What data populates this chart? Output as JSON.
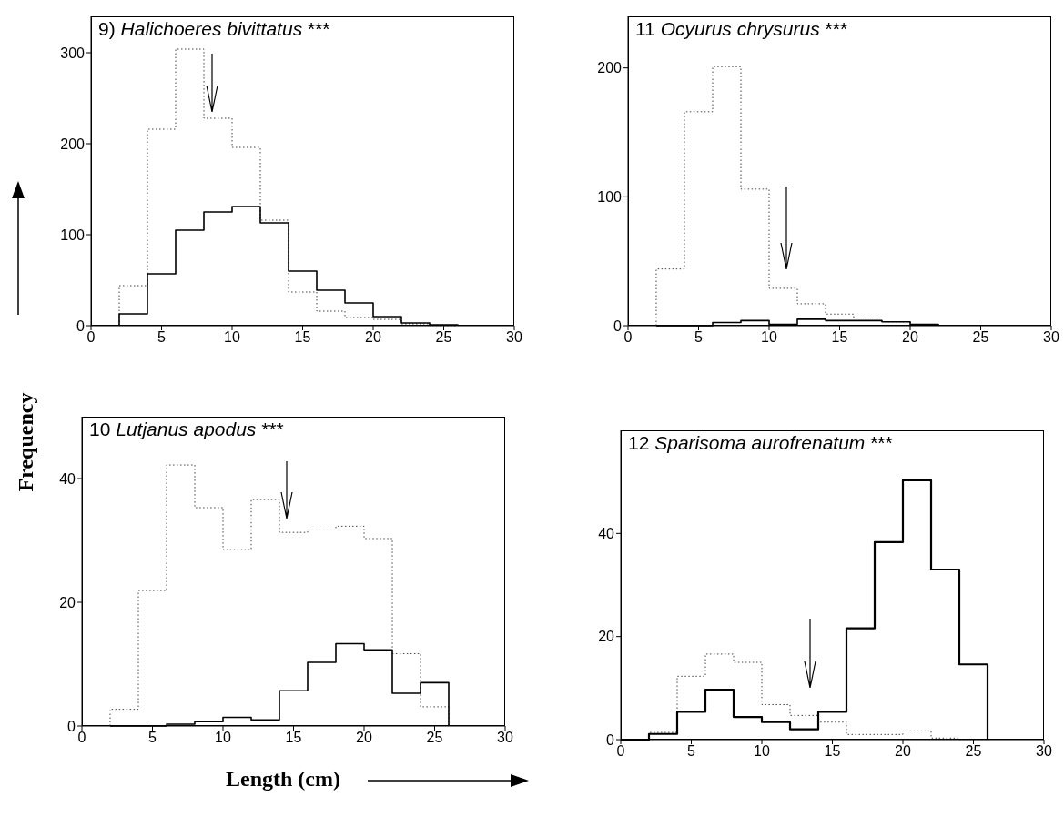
{
  "chart_data": [
    {
      "type": "histogram",
      "title": "9) Halichoeres bivittatus ***",
      "ylabel": "Frequency",
      "xlabel": "Length (cm)",
      "bins": [
        2,
        4,
        6,
        8,
        10,
        12,
        14,
        16,
        18,
        20,
        22,
        24,
        26
      ],
      "series": [
        {
          "color": "#444444",
          "line_style": "dotted",
          "values": [
            44,
            216,
            304,
            228,
            196,
            116,
            37,
            16,
            9,
            7,
            2,
            0
          ]
        },
        {
          "color": "#000000",
          "line_style": "solid",
          "values": [
            13,
            57,
            105,
            125,
            131,
            113,
            60,
            39,
            25,
            10,
            3,
            1
          ]
        }
      ],
      "xlim": [
        0,
        30
      ],
      "xticks": [
        0,
        5,
        10,
        15,
        20,
        25,
        30
      ],
      "ylim": [
        0,
        340
      ],
      "yticks": [
        0,
        100,
        200,
        300
      ]
    },
    {
      "type": "histogram",
      "title": "11 Ocyurus chrysurus ***",
      "bins": [
        2,
        4,
        6,
        8,
        10,
        12,
        14,
        16,
        18,
        20,
        22
      ],
      "series": [
        {
          "color": "#444444",
          "line_style": "dotted",
          "values": [
            44,
            166,
            201,
            106,
            29,
            17,
            9,
            6,
            3,
            1
          ]
        },
        {
          "color": "#000000",
          "line_style": "solid",
          "values": [
            0,
            0,
            2.5,
            4,
            1,
            5,
            4,
            4,
            3,
            1
          ]
        }
      ],
      "xlim": [
        0,
        30
      ],
      "xticks": [
        0,
        5,
        10,
        15,
        20,
        25,
        30
      ],
      "ylim": [
        0,
        240
      ],
      "yticks": [
        0,
        100,
        200
      ]
    },
    {
      "type": "histogram",
      "title": "10 Lutjanus apodus ***",
      "bins": [
        2,
        4,
        6,
        8,
        10,
        12,
        14,
        16,
        18,
        20,
        22,
        24,
        26
      ],
      "series": [
        {
          "color": "#444444",
          "line_style": "dotted",
          "values": [
            2.7,
            21.9,
            42.2,
            35.3,
            28.5,
            36.6,
            31.3,
            31.7,
            32.3,
            30.3,
            11.7,
            3.1
          ]
        },
        {
          "color": "#000000",
          "line_style": "solid",
          "values": [
            0,
            0,
            0.3,
            0.7,
            1.4,
            1.0,
            5.7,
            10.3,
            13.3,
            12.3,
            5.3,
            7.0
          ]
        }
      ],
      "xlim": [
        0,
        30
      ],
      "xticks": [
        0,
        5,
        10,
        15,
        20,
        25,
        30
      ],
      "ylim": [
        0,
        50
      ],
      "yticks": [
        0,
        20,
        40
      ]
    },
    {
      "type": "histogram",
      "title": "12 Sparisoma aurofrenatum ***",
      "bins": [
        0,
        2,
        4,
        6,
        8,
        10,
        12,
        14,
        16,
        18,
        20,
        22,
        24,
        26
      ],
      "series": [
        {
          "color": "#444444",
          "line_style": "dotted",
          "values": [
            0,
            1.4,
            12.3,
            16.6,
            15.0,
            6.8,
            4.7,
            3.4,
            1.0,
            1.0,
            1.7,
            0.3,
            0
          ]
        },
        {
          "color": "#000000",
          "line_style": "solid",
          "values": [
            0,
            1.1,
            5.4,
            9.7,
            4.4,
            3.4,
            2.0,
            5.4,
            21.6,
            38.3,
            50.3,
            33.0,
            14.6
          ]
        }
      ],
      "xlim": [
        0,
        30
      ],
      "xticks": [
        0,
        5,
        10,
        15,
        20,
        25,
        30
      ],
      "ylim": [
        0,
        60
      ],
      "yticks": [
        0,
        20,
        40
      ]
    }
  ]
}
